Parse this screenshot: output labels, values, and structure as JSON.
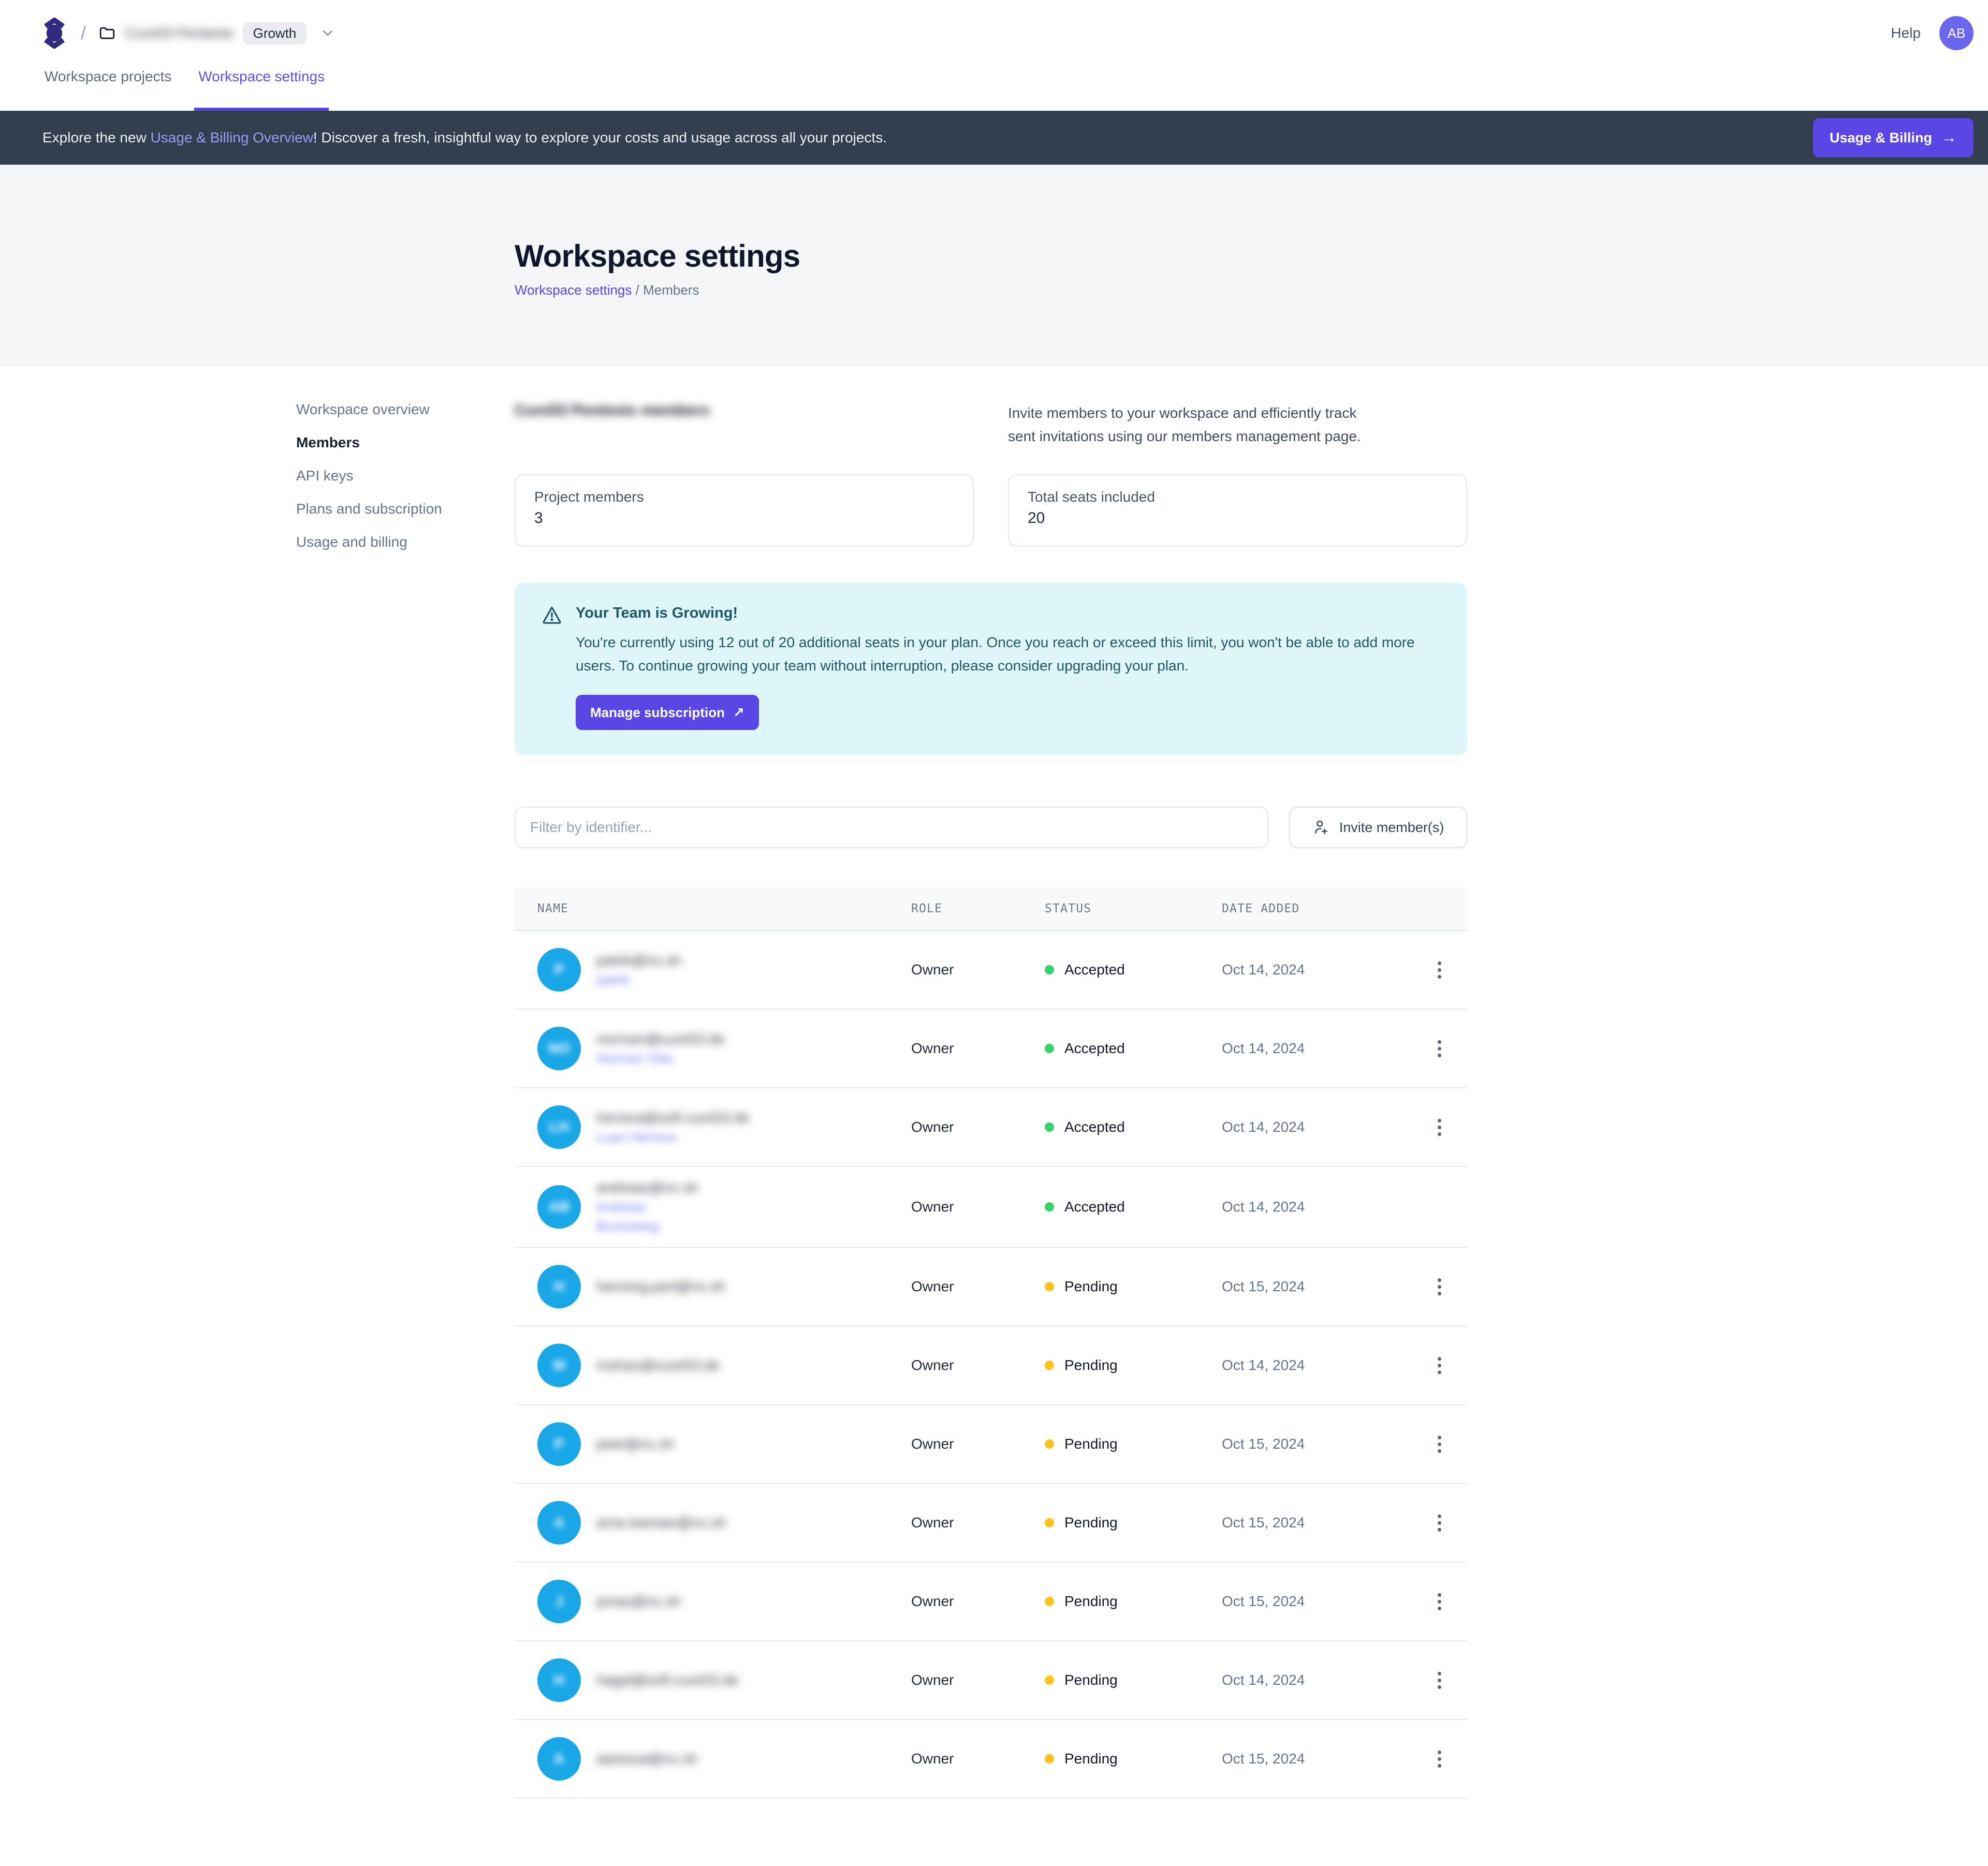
{
  "colors": {
    "accent": "#5a46e4",
    "banner_bg": "#323e4e",
    "alert_bg": "#dff6f9",
    "alert_text": "#1d5666",
    "avatar_blue": "#19a7e8",
    "status": {
      "Accepted": "#34d368",
      "Pending": "#fdc21b"
    }
  },
  "header": {
    "slash": "/",
    "workspace_name": "Cure53 Pentests",
    "plan_badge": "Growth",
    "help_label": "Help",
    "avatar_initials": "AB"
  },
  "tabs": [
    {
      "label": "Workspace projects",
      "active": false
    },
    {
      "label": "Workspace settings",
      "active": true
    }
  ],
  "banner": {
    "text_pre": "Explore the new ",
    "link": "Usage & Billing Overview",
    "text_post": "! Discover a fresh, insightful way to explore your costs and usage across all your projects.",
    "button_label": "Usage & Billing",
    "button_icon": "→"
  },
  "hero": {
    "title": "Workspace settings",
    "breadcrumb_link": "Workspace settings",
    "breadcrumb_sep": " / ",
    "breadcrumb_current": "Members"
  },
  "sidebar": {
    "items": [
      {
        "label": "Workspace overview",
        "active": false
      },
      {
        "label": "Members",
        "active": true
      },
      {
        "label": "API keys",
        "active": false
      },
      {
        "label": "Plans and subscription",
        "active": false
      },
      {
        "label": "Usage and billing",
        "active": false
      }
    ]
  },
  "members": {
    "heading": "Cure53 Pentests members",
    "heading_redacted": true,
    "description": "Invite members to your workspace and efficiently track sent invitations using our members management page.",
    "stats": [
      {
        "label": "Project members",
        "value": "3"
      },
      {
        "label": "Total seats included",
        "value": "20"
      }
    ],
    "alert": {
      "icon": "warning-triangle",
      "title": "Your Team is Growing!",
      "body": "You're currently using 12 out of 20 additional seats in your plan. Once you reach or exceed this limit, you won't be able to add more users. To continue growing your team without interruption, please consider upgrading your plan.",
      "button_label": "Manage subscription",
      "button_icon": "↗"
    },
    "toolbar": {
      "filter_placeholder": "Filter by identifier...",
      "invite_button": "Invite member(s)"
    },
    "table": {
      "columns": [
        "NAME",
        "ROLE",
        "STATUS",
        "DATE ADDED"
      ],
      "rows_redacted_names": true,
      "rows": [
        {
          "initials": "P",
          "email": "patrik@nx.sh",
          "secondary": [
            "patrik"
          ],
          "role": "Owner",
          "status": "Accepted",
          "date": "Oct 14, 2024",
          "menu": true
        },
        {
          "initials": "NO",
          "email": "norman@cure53.de",
          "secondary": [
            "Norman Otto"
          ],
          "role": "Owner",
          "status": "Accepted",
          "date": "Oct 14, 2024",
          "menu": true
        },
        {
          "initials": "LH",
          "email": "herrera@soft.cure53.de",
          "secondary": [
            "Luan Herrera"
          ],
          "role": "Owner",
          "status": "Accepted",
          "date": "Oct 14, 2024",
          "menu": true
        },
        {
          "initials": "AB",
          "email": "andreas@nx.sh",
          "secondary": [
            "Andreas",
            "Bucksteeg"
          ],
          "role": "Owner",
          "status": "Accepted",
          "date": "Oct 14, 2024",
          "menu": false
        },
        {
          "initials": "H",
          "email": "henning.perl@nx.sh",
          "secondary": [],
          "role": "Owner",
          "status": "Pending",
          "date": "Oct 15, 2024",
          "menu": true
        },
        {
          "initials": "M",
          "email": "mohan@cure53.de",
          "secondary": [],
          "role": "Owner",
          "status": "Pending",
          "date": "Oct 14, 2024",
          "menu": true
        },
        {
          "initials": "P",
          "email": "piotr@nx.sh",
          "secondary": [],
          "role": "Owner",
          "status": "Pending",
          "date": "Oct 15, 2024",
          "menu": true
        },
        {
          "initials": "A",
          "email": "arne.loeman@nx.sh",
          "secondary": [],
          "role": "Owner",
          "status": "Pending",
          "date": "Oct 15, 2024",
          "menu": true
        },
        {
          "initials": "J",
          "email": "jonas@nx.sh",
          "secondary": [],
          "role": "Owner",
          "status": "Pending",
          "date": "Oct 15, 2024",
          "menu": true
        },
        {
          "initials": "H",
          "email": "hagal@soft.cure53.de",
          "secondary": [],
          "role": "Owner",
          "status": "Pending",
          "date": "Oct 14, 2024",
          "menu": true
        },
        {
          "initials": "A",
          "email": "aaressa@nx.sh",
          "secondary": [],
          "role": "Owner",
          "status": "Pending",
          "date": "Oct 15, 2024",
          "menu": true
        }
      ]
    }
  }
}
